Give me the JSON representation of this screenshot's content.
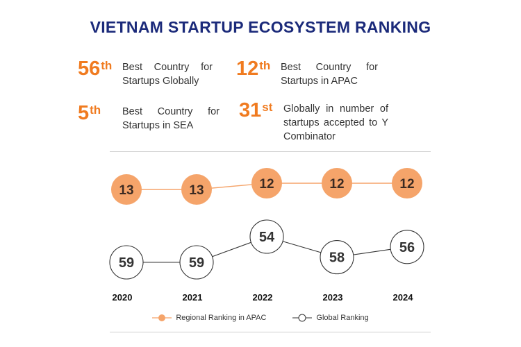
{
  "title": "VIETNAM STARTUP ECOSYSTEM RANKING",
  "stats": [
    {
      "num": "56",
      "suffix": "th",
      "desc": "Best Country for Startups Globally"
    },
    {
      "num": "12",
      "suffix": "th",
      "desc": "Best Country for Startups in APAC"
    },
    {
      "num": "5",
      "suffix": "th",
      "desc": "Best Country for Startups in SEA"
    },
    {
      "num": "31",
      "suffix": "st",
      "desc": "Globally in number of startups accepted to Y Combinator"
    }
  ],
  "chart_data": {
    "type": "line",
    "categories": [
      "2020",
      "2021",
      "2022",
      "2023",
      "2024"
    ],
    "series": [
      {
        "name": "Regional Ranking in APAC",
        "values": [
          13,
          13,
          12,
          12,
          12
        ],
        "color": "#f5a46a"
      },
      {
        "name": "Global Ranking",
        "values": [
          59,
          59,
          54,
          58,
          56
        ],
        "color": "#ffffff"
      }
    ],
    "legend_position": "bottom"
  },
  "colors": {
    "accent": "#f07b20",
    "title": "#1b2a7a"
  }
}
